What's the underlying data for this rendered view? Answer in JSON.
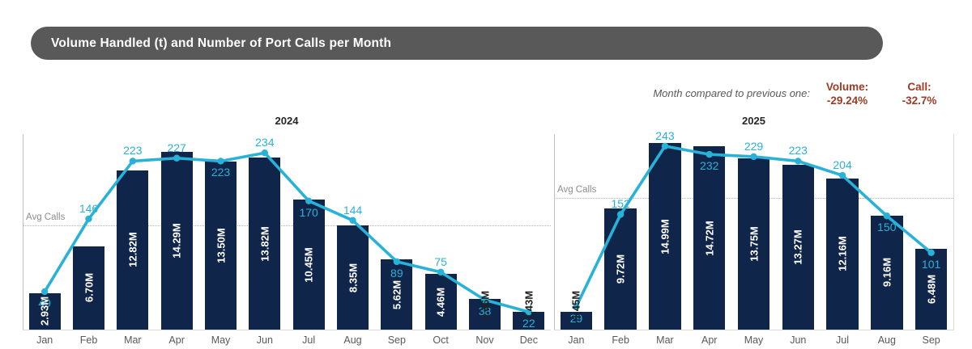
{
  "header": {
    "title": "Volume Handled (t) and Number of Port Calls per Month"
  },
  "comparison": {
    "note": "Month compared to previous one:",
    "volume_label": "Volume:",
    "volume_value": "-29.24%",
    "call_label": "Call:",
    "call_value": "-32.7%"
  },
  "colors": {
    "bar": "#10254a",
    "line": "#29b2d8",
    "call_label": "#29b2d8",
    "bar_label_inside": "#ffffff",
    "bar_label_outside": "#222222",
    "negative": "#9e3b25",
    "title_bg": "#595959"
  },
  "chart_data": [
    {
      "type": "bar+line",
      "year": "2024",
      "categories": [
        "Jan",
        "Feb",
        "Mar",
        "Apr",
        "May",
        "Jun",
        "Jul",
        "Aug",
        "Sep",
        "Oct",
        "Nov",
        "Dec"
      ],
      "series": [
        {
          "name": "Volume Handled (t)",
          "type": "bar",
          "unit": "M tonnes",
          "values": [
            2.93,
            6.7,
            12.82,
            14.29,
            13.5,
            13.82,
            10.45,
            8.35,
            5.62,
            4.46,
            2.46,
            1.43
          ],
          "labels": [
            "2.93M",
            "6.70M",
            "12.82M",
            "14.29M",
            "13.50M",
            "13.82M",
            "10.45M",
            "8.35M",
            "5.62M",
            "4.46M",
            "2.46M",
            "1.43M"
          ]
        },
        {
          "name": "Number of Port Calls",
          "type": "line",
          "values": [
            49,
            146,
            223,
            227,
            223,
            234,
            170,
            144,
            89,
            75,
            38,
            22
          ],
          "labels": [
            "49",
            "146",
            "223",
            "227",
            "223",
            "234",
            "170",
            "144",
            "89",
            "75",
            "38",
            "22"
          ],
          "label_side": [
            "below",
            "above",
            "above",
            "above",
            "below",
            "above",
            "below",
            "above",
            "below",
            "above",
            "below",
            "below"
          ]
        }
      ],
      "avg_line": {
        "label": "Avg Calls",
        "value": 137
      },
      "grid": "avg-dotted-only",
      "legend": "none"
    },
    {
      "type": "bar+line",
      "year": "2025",
      "categories": [
        "Jan",
        "Feb",
        "Mar",
        "Apr",
        "May",
        "Jun",
        "Jul",
        "Aug",
        "Sep"
      ],
      "series": [
        {
          "name": "Volume Handled (t)",
          "type": "bar",
          "unit": "M tonnes",
          "values": [
            1.45,
            9.72,
            14.99,
            14.72,
            13.75,
            13.27,
            12.16,
            9.16,
            6.48
          ],
          "labels": [
            "1.45M",
            "9.72M",
            "14.99M",
            "14.72M",
            "13.75M",
            "13.27M",
            "12.16M",
            "9.16M",
            "6.48M"
          ],
          "label_colors_outside": true
        },
        {
          "name": "Number of Port Calls",
          "type": "line",
          "values": [
            29,
            152,
            243,
            232,
            229,
            223,
            204,
            150,
            101
          ],
          "labels": [
            "29",
            "152",
            "243",
            "232",
            "229",
            "223",
            "204",
            "150",
            "101"
          ],
          "label_side": [
            "below",
            "above",
            "above",
            "below",
            "above",
            "above",
            "above",
            "below",
            "below"
          ]
        }
      ],
      "avg_line": {
        "label": "Avg Calls",
        "value": 174
      },
      "grid": "avg-dotted-only",
      "legend": "none"
    }
  ]
}
